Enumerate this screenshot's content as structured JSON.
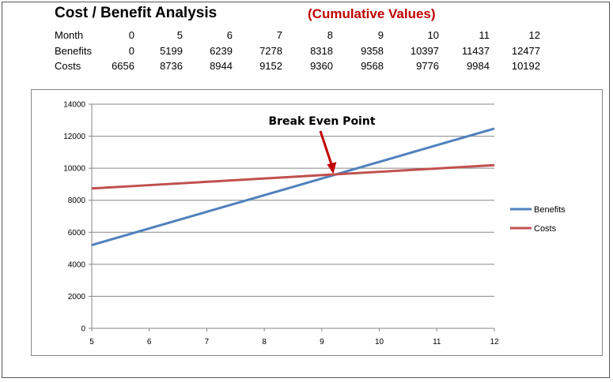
{
  "header": {
    "title": "Cost / Benefit Analysis",
    "subtitle": "(Cumulative Values)",
    "subtitle_color": "#c00000"
  },
  "table": {
    "rows": [
      {
        "label": "Month",
        "values": [
          "0",
          "5",
          "6",
          "7",
          "8",
          "9",
          "10",
          "11",
          "12"
        ]
      },
      {
        "label": "Benefits",
        "values": [
          "0",
          "5199",
          "6239",
          "7278",
          "8318",
          "9358",
          "10397",
          "11437",
          "12477"
        ]
      },
      {
        "label": "Costs",
        "values": [
          "6656",
          "8736",
          "8944",
          "9152",
          "9360",
          "9568",
          "9776",
          "9984",
          "10192"
        ]
      }
    ]
  },
  "chart_data": {
    "type": "line",
    "x": [
      5,
      6,
      7,
      8,
      9,
      10,
      11,
      12
    ],
    "series": [
      {
        "name": "Benefits",
        "values": [
          5199,
          6239,
          7278,
          8318,
          9358,
          10397,
          11437,
          12477
        ],
        "color": "#4f81bd"
      },
      {
        "name": "Costs",
        "values": [
          8736,
          8944,
          9152,
          9360,
          9568,
          9776,
          9984,
          10192
        ],
        "color": "#c0504d"
      }
    ],
    "xlim": [
      5,
      12
    ],
    "ylim": [
      0,
      14000
    ],
    "x_ticks": [
      "5",
      "6",
      "7",
      "8",
      "9",
      "10",
      "11",
      "12"
    ],
    "y_ticks": [
      "0",
      "2000",
      "4000",
      "6000",
      "8000",
      "10000",
      "12000",
      "14000"
    ],
    "grid": "horizontal",
    "legend": "right",
    "annotation": {
      "text": "Break Even Point",
      "x": 9.2,
      "y": 9600,
      "arrow_color": "#c00000"
    }
  }
}
